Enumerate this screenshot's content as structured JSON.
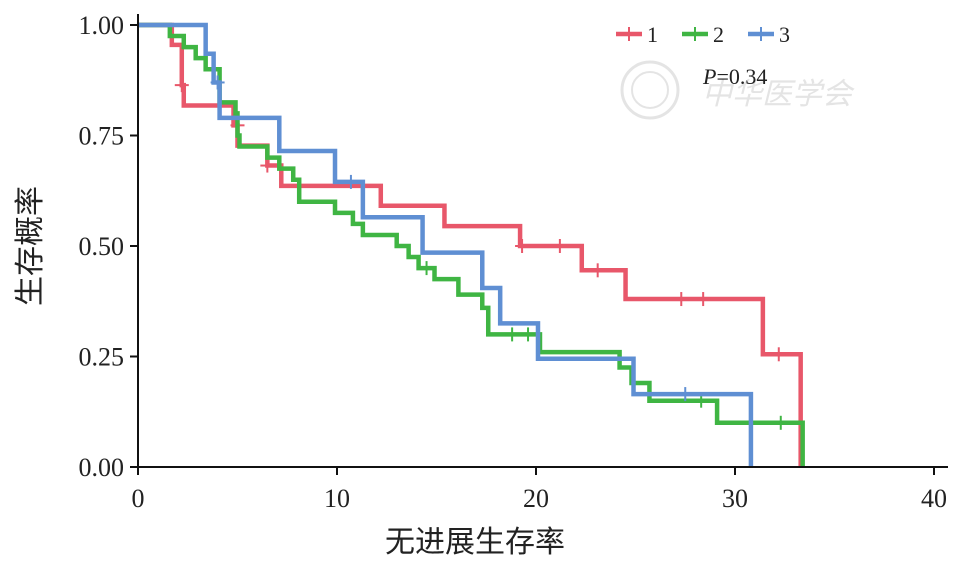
{
  "chart_data": {
    "type": "line",
    "step": "post",
    "title": "",
    "xlabel": "无进展生存率",
    "ylabel": "生存概率",
    "xlim": [
      0,
      40
    ],
    "ylim": [
      0,
      1
    ],
    "xticks": [
      0,
      10,
      20,
      30,
      40
    ],
    "xtick_labels": [
      "0",
      "10",
      "20",
      "30",
      "40"
    ],
    "yticks": [
      0,
      0.25,
      0.5,
      0.75,
      1
    ],
    "ytick_labels": [
      "0.00",
      "0.25",
      "0.50",
      "0.75",
      "1.00"
    ],
    "grid": false,
    "legend_position": "top-right",
    "annotation": {
      "italic": "P",
      "rest": "=0.34"
    },
    "watermark": "中华医学会",
    "series": [
      {
        "name": "1",
        "color": "#e8576a",
        "steps": [
          [
            0,
            1
          ],
          [
            1.7,
            0.955
          ],
          [
            2.2,
            0.864
          ],
          [
            2.3,
            0.818
          ],
          [
            4.8,
            0.773
          ],
          [
            5,
            0.727
          ],
          [
            6.5,
            0.682
          ],
          [
            7.2,
            0.636
          ],
          [
            12.2,
            0.591
          ],
          [
            15.4,
            0.545
          ],
          [
            19.2,
            0.5
          ],
          [
            22.3,
            0.445
          ],
          [
            24.5,
            0.38
          ],
          [
            31.4,
            0.255
          ],
          [
            33.3,
            0
          ]
        ],
        "censor": [
          [
            2.2,
            0.864
          ],
          [
            5,
            0.773
          ],
          [
            6.5,
            0.682
          ],
          [
            19.3,
            0.5
          ],
          [
            21.2,
            0.5
          ],
          [
            23.1,
            0.445
          ],
          [
            27.3,
            0.38
          ],
          [
            28.4,
            0.38
          ],
          [
            32.2,
            0.255
          ]
        ]
      },
      {
        "name": "2",
        "color": "#3fb543",
        "steps": [
          [
            0,
            1
          ],
          [
            1.6,
            0.975
          ],
          [
            2.3,
            0.95
          ],
          [
            2.9,
            0.925
          ],
          [
            3.4,
            0.9
          ],
          [
            4.1,
            0.825
          ],
          [
            4.9,
            0.8
          ],
          [
            5,
            0.75
          ],
          [
            5.1,
            0.725
          ],
          [
            6.5,
            0.7
          ],
          [
            7.1,
            0.675
          ],
          [
            7.8,
            0.65
          ],
          [
            8.1,
            0.6
          ],
          [
            9.9,
            0.575
          ],
          [
            10.8,
            0.55
          ],
          [
            11.3,
            0.525
          ],
          [
            13,
            0.5
          ],
          [
            13.6,
            0.475
          ],
          [
            14.1,
            0.45
          ],
          [
            14.9,
            0.425
          ],
          [
            16.1,
            0.39
          ],
          [
            17.3,
            0.36
          ],
          [
            17.6,
            0.3
          ],
          [
            20.2,
            0.26
          ],
          [
            24.2,
            0.225
          ],
          [
            24.8,
            0.19
          ],
          [
            25.7,
            0.15
          ],
          [
            29.1,
            0.1
          ],
          [
            33.4,
            0
          ]
        ],
        "censor": [
          [
            14.5,
            0.45
          ],
          [
            18.8,
            0.3
          ],
          [
            19.6,
            0.3
          ],
          [
            28.3,
            0.15
          ],
          [
            32.3,
            0.1
          ]
        ]
      },
      {
        "name": "3",
        "color": "#5f8fd3",
        "steps": [
          [
            0,
            1
          ],
          [
            3.4,
            0.935
          ],
          [
            3.8,
            0.87
          ],
          [
            4.1,
            0.79
          ],
          [
            7.1,
            0.715
          ],
          [
            9.9,
            0.645
          ],
          [
            11.3,
            0.565
          ],
          [
            14.3,
            0.485
          ],
          [
            17.3,
            0.405
          ],
          [
            18.2,
            0.325
          ],
          [
            20.1,
            0.245
          ],
          [
            24.9,
            0.165
          ],
          [
            30.8,
            0
          ]
        ],
        "censor": [
          [
            4,
            0.87
          ],
          [
            10.7,
            0.645
          ],
          [
            27.5,
            0.165
          ]
        ]
      }
    ]
  }
}
